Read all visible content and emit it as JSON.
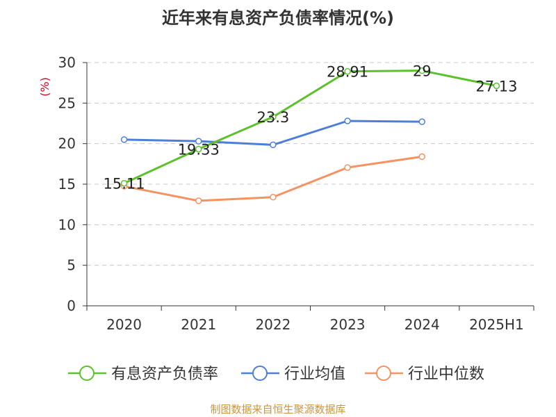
{
  "chart_data": {
    "type": "line",
    "title": "近年来有息资产负债率情况(%)",
    "ylabel": "(%)",
    "xlabel": "",
    "categories": [
      "2020",
      "2021",
      "2022",
      "2023",
      "2024",
      "2025H1"
    ],
    "yticks": [
      "0",
      "5",
      "10",
      "15",
      "20",
      "25",
      "30"
    ],
    "ylim": [
      0,
      30
    ],
    "grid": "horizontal-dashed",
    "legend_position": "bottom",
    "series": [
      {
        "name": "有息资产负债率",
        "color": "#5cc12c",
        "values": [
          15.11,
          19.33,
          23.3,
          28.91,
          29,
          27.13
        ],
        "labels": [
          "15.11",
          "19.33",
          "23.3",
          "28.91",
          "29",
          "27.13"
        ]
      },
      {
        "name": "行业均值",
        "color": "#4e7fd8",
        "values": [
          20.5,
          20.3,
          19.85,
          22.8,
          22.7,
          null
        ],
        "labels": []
      },
      {
        "name": "行业中位数",
        "color": "#f59262",
        "values": [
          14.75,
          12.95,
          13.4,
          17.05,
          18.4,
          null
        ],
        "labels": []
      }
    ]
  },
  "source": "制图数据来自恒生聚源数据库"
}
